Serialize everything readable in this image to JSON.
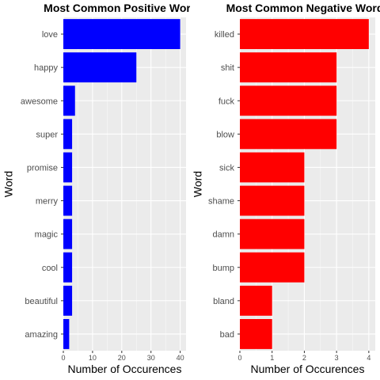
{
  "chart_data": [
    {
      "type": "bar",
      "orientation": "horizontal",
      "title": "Most Common Positive Wor",
      "xlabel": "Number of Occurences",
      "ylabel": "Word",
      "color": "#0000ff",
      "xlim": [
        0,
        42
      ],
      "xticks": [
        0,
        10,
        20,
        30,
        40
      ],
      "categories": [
        "love",
        "happy",
        "awesome",
        "super",
        "promise",
        "merry",
        "magic",
        "cool",
        "beautiful",
        "amazing"
      ],
      "values": [
        40,
        25,
        4,
        3,
        3,
        3,
        3,
        3,
        3,
        2
      ],
      "grid": true,
      "legend": "none"
    },
    {
      "type": "bar",
      "orientation": "horizontal",
      "title": "Most Common Negative Word",
      "xlabel": "Number of Occurences",
      "ylabel": "Word",
      "color": "#ff0000",
      "xlim": [
        0,
        4.2
      ],
      "xticks": [
        0,
        1,
        2,
        3,
        4
      ],
      "categories": [
        "killed",
        "shit",
        "fuck",
        "blow",
        "sick",
        "shame",
        "damn",
        "bump",
        "bland",
        "bad"
      ],
      "values": [
        4,
        3,
        3,
        3,
        2,
        2,
        2,
        2,
        1,
        1
      ],
      "grid": true,
      "legend": "none"
    }
  ]
}
